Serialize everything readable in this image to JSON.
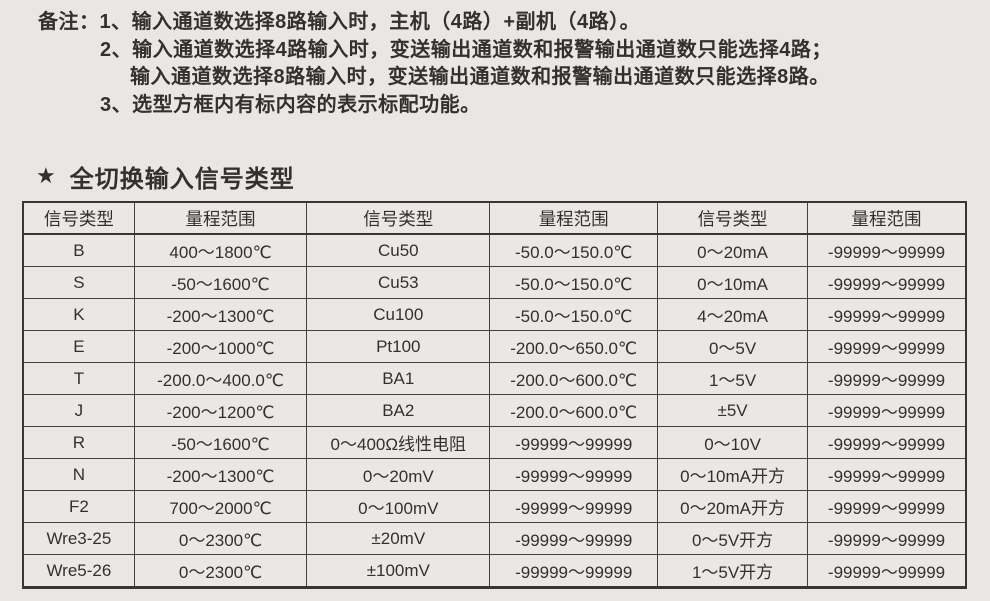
{
  "notes": {
    "label": "备注：",
    "lines": [
      "1、输入通道数选择8路输入时，主机（4路）+副机（4路）。",
      "2、输入通道数选择4路输入时，变送输出通道数和报警输出通道数只能选择4路；",
      "输入通道数选择8路输入时，变送输出通道数和报警输出通道数只能选择8路。",
      "3、选型方框内有标内容的表示标配功能。"
    ]
  },
  "heading": {
    "star": "★",
    "text": "全切换输入信号类型"
  },
  "table": {
    "headers": [
      "信号类型",
      "量程范围",
      "信号类型",
      "量程范围",
      "信号类型",
      "量程范围"
    ],
    "rows": [
      [
        "B",
        "400～1800℃",
        "Cu50",
        "-50.0～150.0℃",
        "0～20mA",
        "-99999～99999"
      ],
      [
        "S",
        "-50～1600℃",
        "Cu53",
        "-50.0～150.0℃",
        "0～10mA",
        "-99999～99999"
      ],
      [
        "K",
        "-200～1300℃",
        "Cu100",
        "-50.0～150.0℃",
        "4～20mA",
        "-99999～99999"
      ],
      [
        "E",
        "-200～1000℃",
        "Pt100",
        "-200.0～650.0℃",
        "0～5V",
        "-99999～99999"
      ],
      [
        "T",
        "-200.0～400.0℃",
        "BA1",
        "-200.0～600.0℃",
        "1～5V",
        "-99999～99999"
      ],
      [
        "J",
        "-200～1200℃",
        "BA2",
        "-200.0～600.0℃",
        "±5V",
        "-99999～99999"
      ],
      [
        "R",
        "-50～1600℃",
        "0～400Ω线性电阻",
        "-99999～99999",
        "0～10V",
        "-99999～99999"
      ],
      [
        "N",
        "-200～1300℃",
        "0～20mV",
        "-99999～99999",
        "0～10mA开方",
        "-99999～99999"
      ],
      [
        "F2",
        "700～2000℃",
        "0～100mV",
        "-99999～99999",
        "0～20mA开方",
        "-99999～99999"
      ],
      [
        "Wre3-25",
        "0～2300℃",
        "±20mV",
        "-99999～99999",
        "0～5V开方",
        "-99999～99999"
      ],
      [
        "Wre5-26",
        "0～2300℃",
        "±100mV",
        "-99999～99999",
        "1～5V开方",
        "-99999～99999"
      ]
    ]
  },
  "colors": {
    "background": "#e9e7e4",
    "text": "#33302d",
    "border": "#3a3633"
  }
}
